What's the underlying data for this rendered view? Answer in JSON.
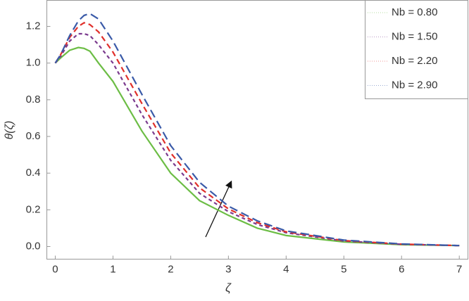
{
  "chart_data": {
    "type": "line",
    "x_label": "ζ",
    "y_label": "θ(ζ)",
    "x": [
      0,
      0.1,
      0.25,
      0.4,
      0.5,
      0.6,
      0.75,
      1,
      1.5,
      2,
      2.5,
      3,
      3.5,
      4,
      5,
      6,
      7
    ],
    "series": [
      {
        "name": "Nb = 0.80",
        "color": "#6cbd45",
        "dash": "none",
        "values": [
          1.0,
          1.03,
          1.07,
          1.085,
          1.08,
          1.065,
          1.0,
          0.9,
          0.63,
          0.4,
          0.25,
          0.17,
          0.1,
          0.06,
          0.025,
          0.01,
          0.005
        ]
      },
      {
        "name": "Nb = 1.50",
        "color": "#7b3a8e",
        "dash": "5,4",
        "values": [
          1.0,
          1.04,
          1.12,
          1.16,
          1.16,
          1.15,
          1.1,
          1.0,
          0.72,
          0.47,
          0.29,
          0.19,
          0.12,
          0.075,
          0.03,
          0.012,
          0.005
        ]
      },
      {
        "name": "Nb = 2.20",
        "color": "#e0302b",
        "dash": "8,5",
        "values": [
          1.0,
          1.05,
          1.14,
          1.2,
          1.22,
          1.21,
          1.17,
          1.06,
          0.78,
          0.51,
          0.32,
          0.205,
          0.13,
          0.08,
          0.032,
          0.013,
          0.005
        ]
      },
      {
        "name": "Nb = 2.90",
        "color": "#3a5aa8",
        "dash": "12,6",
        "values": [
          1.0,
          1.05,
          1.15,
          1.23,
          1.26,
          1.27,
          1.24,
          1.12,
          0.83,
          0.55,
          0.35,
          0.22,
          0.14,
          0.085,
          0.035,
          0.014,
          0.005
        ]
      }
    ],
    "xlim": [
      -0.146,
      7.15
    ],
    "ylim": [
      -0.069,
      1.342
    ],
    "xticks": [
      0,
      1,
      2,
      3,
      4,
      5,
      6,
      7
    ],
    "yticks": [
      {
        "value": 0,
        "label": "0.0"
      },
      0.2,
      0.4,
      0.6,
      0.8,
      {
        "value": 1,
        "label": "1.0"
      },
      1.2
    ],
    "legend": "top-right",
    "grid": false
  }
}
